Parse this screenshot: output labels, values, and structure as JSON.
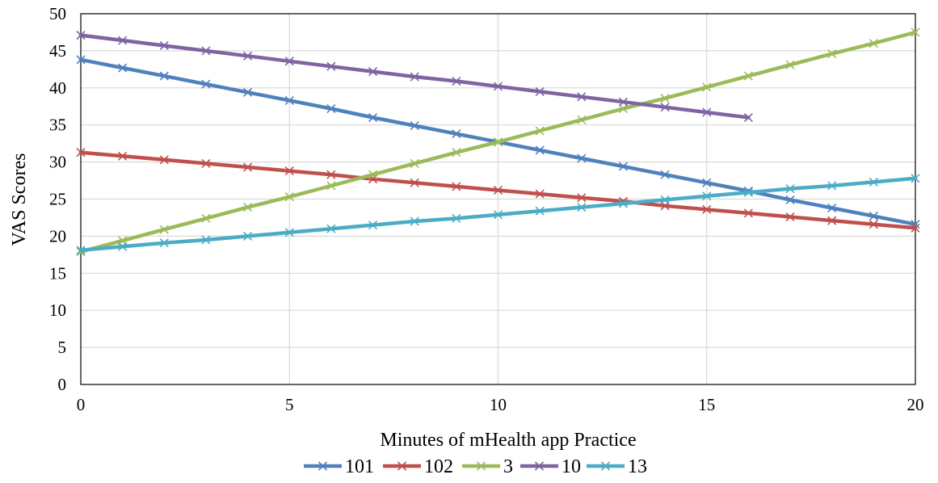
{
  "chart_data": {
    "type": "line",
    "xlabel": "Minutes of mHealth app Practice",
    "ylabel": "VAS Scores",
    "xlim": [
      0,
      20
    ],
    "ylim": [
      0,
      50
    ],
    "xticks": [
      0,
      5,
      10,
      15,
      20
    ],
    "yticks": [
      0,
      5,
      10,
      15,
      20,
      25,
      30,
      35,
      40,
      45,
      50
    ],
    "grid": true,
    "legend_position": "bottom",
    "markers": "x",
    "series": [
      {
        "name": "101",
        "color": "#4f81bd",
        "x": [
          0,
          1,
          2,
          3,
          4,
          5,
          6,
          7,
          8,
          9,
          10,
          11,
          12,
          13,
          14,
          15,
          16,
          17,
          18,
          19,
          20
        ],
        "y": [
          43.8,
          42.7,
          41.6,
          40.5,
          39.4,
          38.3,
          37.2,
          36.0,
          34.9,
          33.8,
          32.7,
          31.6,
          30.5,
          29.4,
          28.3,
          27.2,
          26.1,
          24.9,
          23.8,
          22.7,
          21.6
        ]
      },
      {
        "name": "102",
        "color": "#c0504d",
        "x": [
          0,
          1,
          2,
          3,
          4,
          5,
          6,
          7,
          8,
          9,
          10,
          11,
          12,
          13,
          14,
          15,
          16,
          17,
          18,
          19,
          20
        ],
        "y": [
          31.3,
          30.8,
          30.3,
          29.8,
          29.3,
          28.8,
          28.3,
          27.7,
          27.2,
          26.7,
          26.2,
          25.7,
          25.2,
          24.7,
          24.1,
          23.6,
          23.1,
          22.6,
          22.1,
          21.6,
          21.1
        ]
      },
      {
        "name": "3",
        "color": "#9bbb59",
        "x": [
          0,
          1,
          2,
          3,
          4,
          5,
          6,
          7,
          8,
          9,
          10,
          11,
          12,
          13,
          14,
          15,
          16,
          17,
          18,
          19,
          20
        ],
        "y": [
          17.9,
          19.4,
          20.9,
          22.4,
          23.9,
          25.3,
          26.8,
          28.3,
          29.8,
          31.3,
          32.7,
          34.2,
          35.7,
          37.2,
          38.6,
          40.1,
          41.6,
          43.1,
          44.6,
          46.0,
          47.5
        ]
      },
      {
        "name": "10",
        "color": "#8064a2",
        "x": [
          0,
          1,
          2,
          3,
          4,
          5,
          6,
          7,
          8,
          9,
          10,
          11,
          12,
          13,
          14,
          15,
          16
        ],
        "y": [
          47.1,
          46.4,
          45.7,
          45.0,
          44.3,
          43.6,
          42.9,
          42.2,
          41.5,
          40.9,
          40.2,
          39.5,
          38.8,
          38.1,
          37.4,
          36.7,
          36.0
        ]
      },
      {
        "name": "13",
        "color": "#4bacc6",
        "x": [
          0,
          1,
          2,
          3,
          4,
          5,
          6,
          7,
          8,
          9,
          10,
          11,
          12,
          13,
          14,
          15,
          16,
          17,
          18,
          19,
          20
        ],
        "y": [
          18.1,
          18.6,
          19.1,
          19.5,
          20.0,
          20.5,
          21.0,
          21.5,
          22.0,
          22.4,
          22.9,
          23.4,
          23.9,
          24.4,
          24.9,
          25.4,
          25.9,
          26.4,
          26.8,
          27.3,
          27.8
        ]
      }
    ]
  }
}
